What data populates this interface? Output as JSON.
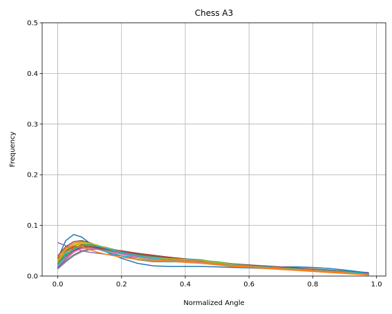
{
  "chart_data": {
    "type": "line",
    "title": "Chess A3",
    "xlabel": "Normalized Angle",
    "ylabel": "Frequency",
    "xlim": [
      -0.049,
      1.029
    ],
    "ylim": [
      0,
      0.5
    ],
    "xticks": [
      0.0,
      0.2,
      0.4,
      0.6,
      0.8,
      1.0
    ],
    "xtick_labels": [
      "0.0",
      "0.2",
      "0.4",
      "0.6",
      "0.8",
      "1.0"
    ],
    "yticks": [
      0.0,
      0.1,
      0.2,
      0.3,
      0.4,
      0.5
    ],
    "ytick_labels": [
      "0.0",
      "0.1",
      "0.2",
      "0.3",
      "0.4",
      "0.5"
    ],
    "grid": true,
    "legend": false,
    "x": [
      0.0,
      0.025,
      0.05,
      0.075,
      0.1,
      0.125,
      0.15,
      0.2,
      0.25,
      0.3,
      0.35,
      0.4,
      0.45,
      0.5,
      0.55,
      0.6,
      0.65,
      0.7,
      0.75,
      0.8,
      0.85,
      0.9,
      0.95,
      0.975
    ],
    "series": [
      {
        "color": "#1f77b4",
        "values": [
          0.035,
          0.07,
          0.082,
          0.077,
          0.065,
          0.055,
          0.048,
          0.035,
          0.025,
          0.02,
          0.019,
          0.019,
          0.019,
          0.018,
          0.017,
          0.016,
          0.015,
          0.014,
          0.013,
          0.012,
          0.011,
          0.009,
          0.006,
          0.004
        ]
      },
      {
        "color": "#ff7f0e",
        "values": [
          0.03,
          0.055,
          0.065,
          0.068,
          0.063,
          0.057,
          0.05,
          0.04,
          0.032,
          0.028,
          0.028,
          0.029,
          0.027,
          0.024,
          0.021,
          0.019,
          0.017,
          0.015,
          0.013,
          0.011,
          0.009,
          0.007,
          0.005,
          0.003
        ]
      },
      {
        "color": "#2ca02c",
        "values": [
          0.025,
          0.045,
          0.06,
          0.066,
          0.064,
          0.058,
          0.052,
          0.044,
          0.038,
          0.034,
          0.032,
          0.032,
          0.031,
          0.027,
          0.023,
          0.02,
          0.018,
          0.016,
          0.014,
          0.012,
          0.01,
          0.008,
          0.005,
          0.003
        ]
      },
      {
        "color": "#d62728",
        "values": [
          0.02,
          0.04,
          0.055,
          0.062,
          0.061,
          0.057,
          0.053,
          0.047,
          0.041,
          0.037,
          0.034,
          0.032,
          0.029,
          0.026,
          0.023,
          0.021,
          0.018,
          0.016,
          0.014,
          0.012,
          0.01,
          0.008,
          0.005,
          0.003
        ]
      },
      {
        "color": "#9467bd",
        "values": [
          0.066,
          0.06,
          0.054,
          0.05,
          0.047,
          0.045,
          0.043,
          0.04,
          0.036,
          0.033,
          0.031,
          0.029,
          0.027,
          0.025,
          0.022,
          0.02,
          0.018,
          0.016,
          0.014,
          0.012,
          0.01,
          0.009,
          0.008,
          0.007
        ]
      },
      {
        "color": "#8c564b",
        "values": [
          0.04,
          0.058,
          0.068,
          0.07,
          0.066,
          0.06,
          0.054,
          0.048,
          0.044,
          0.04,
          0.037,
          0.034,
          0.03,
          0.027,
          0.024,
          0.022,
          0.019,
          0.017,
          0.015,
          0.013,
          0.011,
          0.009,
          0.006,
          0.004
        ]
      },
      {
        "color": "#e377c2",
        "values": [
          0.022,
          0.04,
          0.052,
          0.057,
          0.057,
          0.054,
          0.05,
          0.044,
          0.039,
          0.035,
          0.032,
          0.03,
          0.028,
          0.025,
          0.022,
          0.019,
          0.017,
          0.015,
          0.013,
          0.011,
          0.009,
          0.007,
          0.005,
          0.003
        ]
      },
      {
        "color": "#7f7f7f",
        "values": [
          0.015,
          0.03,
          0.042,
          0.05,
          0.053,
          0.054,
          0.053,
          0.05,
          0.045,
          0.04,
          0.036,
          0.032,
          0.029,
          0.026,
          0.023,
          0.02,
          0.018,
          0.016,
          0.014,
          0.012,
          0.01,
          0.008,
          0.005,
          0.003
        ]
      },
      {
        "color": "#bcbd22",
        "values": [
          0.028,
          0.05,
          0.06,
          0.064,
          0.063,
          0.06,
          0.055,
          0.045,
          0.036,
          0.031,
          0.029,
          0.028,
          0.027,
          0.024,
          0.021,
          0.019,
          0.017,
          0.015,
          0.013,
          0.011,
          0.009,
          0.007,
          0.005,
          0.003
        ]
      },
      {
        "color": "#17becf",
        "values": [
          0.02,
          0.045,
          0.058,
          0.06,
          0.058,
          0.053,
          0.048,
          0.04,
          0.033,
          0.029,
          0.028,
          0.028,
          0.026,
          0.023,
          0.02,
          0.018,
          0.017,
          0.016,
          0.015,
          0.014,
          0.012,
          0.01,
          0.007,
          0.004
        ]
      },
      {
        "color": "#1f77b4",
        "values": [
          0.018,
          0.035,
          0.05,
          0.058,
          0.059,
          0.057,
          0.053,
          0.045,
          0.038,
          0.034,
          0.033,
          0.034,
          0.032,
          0.027,
          0.023,
          0.02,
          0.019,
          0.018,
          0.018,
          0.017,
          0.015,
          0.012,
          0.008,
          0.005
        ]
      },
      {
        "color": "#ff7f0e",
        "values": [
          0.03,
          0.048,
          0.056,
          0.058,
          0.06,
          0.06,
          0.057,
          0.048,
          0.039,
          0.033,
          0.029,
          0.027,
          0.025,
          0.022,
          0.019,
          0.017,
          0.015,
          0.013,
          0.011,
          0.009,
          0.007,
          0.005,
          0.003,
          0.002
        ]
      },
      {
        "color": "#2ca02c",
        "values": [
          0.024,
          0.042,
          0.054,
          0.061,
          0.062,
          0.06,
          0.056,
          0.049,
          0.043,
          0.038,
          0.035,
          0.033,
          0.031,
          0.028,
          0.024,
          0.02,
          0.017,
          0.015,
          0.013,
          0.011,
          0.009,
          0.007,
          0.005,
          0.003
        ]
      },
      {
        "color": "#d62728",
        "values": [
          0.02,
          0.038,
          0.05,
          0.056,
          0.058,
          0.057,
          0.054,
          0.049,
          0.045,
          0.041,
          0.037,
          0.033,
          0.029,
          0.025,
          0.022,
          0.02,
          0.018,
          0.016,
          0.014,
          0.012,
          0.01,
          0.008,
          0.006,
          0.004
        ]
      },
      {
        "color": "#9467bd",
        "values": [
          0.016,
          0.033,
          0.047,
          0.055,
          0.057,
          0.055,
          0.051,
          0.044,
          0.038,
          0.034,
          0.031,
          0.029,
          0.027,
          0.024,
          0.021,
          0.019,
          0.017,
          0.015,
          0.013,
          0.011,
          0.009,
          0.007,
          0.005,
          0.003
        ]
      },
      {
        "color": "#8c564b",
        "values": [
          0.035,
          0.05,
          0.058,
          0.06,
          0.058,
          0.055,
          0.052,
          0.048,
          0.044,
          0.04,
          0.036,
          0.032,
          0.029,
          0.026,
          0.024,
          0.022,
          0.02,
          0.018,
          0.016,
          0.014,
          0.012,
          0.009,
          0.006,
          0.004
        ]
      },
      {
        "color": "#e377c2",
        "values": [
          0.02,
          0.036,
          0.048,
          0.054,
          0.055,
          0.053,
          0.05,
          0.043,
          0.037,
          0.033,
          0.031,
          0.029,
          0.027,
          0.024,
          0.021,
          0.019,
          0.017,
          0.015,
          0.013,
          0.011,
          0.009,
          0.007,
          0.005,
          0.003
        ]
      },
      {
        "color": "#7f7f7f",
        "values": [
          0.014,
          0.028,
          0.04,
          0.048,
          0.052,
          0.053,
          0.051,
          0.046,
          0.041,
          0.037,
          0.034,
          0.031,
          0.028,
          0.025,
          0.022,
          0.02,
          0.018,
          0.016,
          0.014,
          0.012,
          0.01,
          0.008,
          0.005,
          0.003
        ]
      },
      {
        "color": "#bcbd22",
        "values": [
          0.032,
          0.052,
          0.062,
          0.066,
          0.065,
          0.061,
          0.056,
          0.047,
          0.04,
          0.036,
          0.034,
          0.033,
          0.031,
          0.027,
          0.023,
          0.02,
          0.018,
          0.016,
          0.014,
          0.012,
          0.01,
          0.008,
          0.005,
          0.003
        ]
      },
      {
        "color": "#17becf",
        "values": [
          0.022,
          0.04,
          0.053,
          0.06,
          0.061,
          0.059,
          0.055,
          0.047,
          0.04,
          0.035,
          0.032,
          0.03,
          0.028,
          0.025,
          0.022,
          0.02,
          0.018,
          0.016,
          0.014,
          0.012,
          0.01,
          0.008,
          0.006,
          0.004
        ]
      },
      {
        "color": "#ff7f0e",
        "values": [
          0.038,
          0.055,
          0.06,
          0.058,
          0.052,
          0.047,
          0.043,
          0.037,
          0.033,
          0.031,
          0.03,
          0.03,
          0.028,
          0.024,
          0.021,
          0.019,
          0.017,
          0.015,
          0.013,
          0.011,
          0.009,
          0.007,
          0.004,
          0.002
        ]
      }
    ]
  }
}
